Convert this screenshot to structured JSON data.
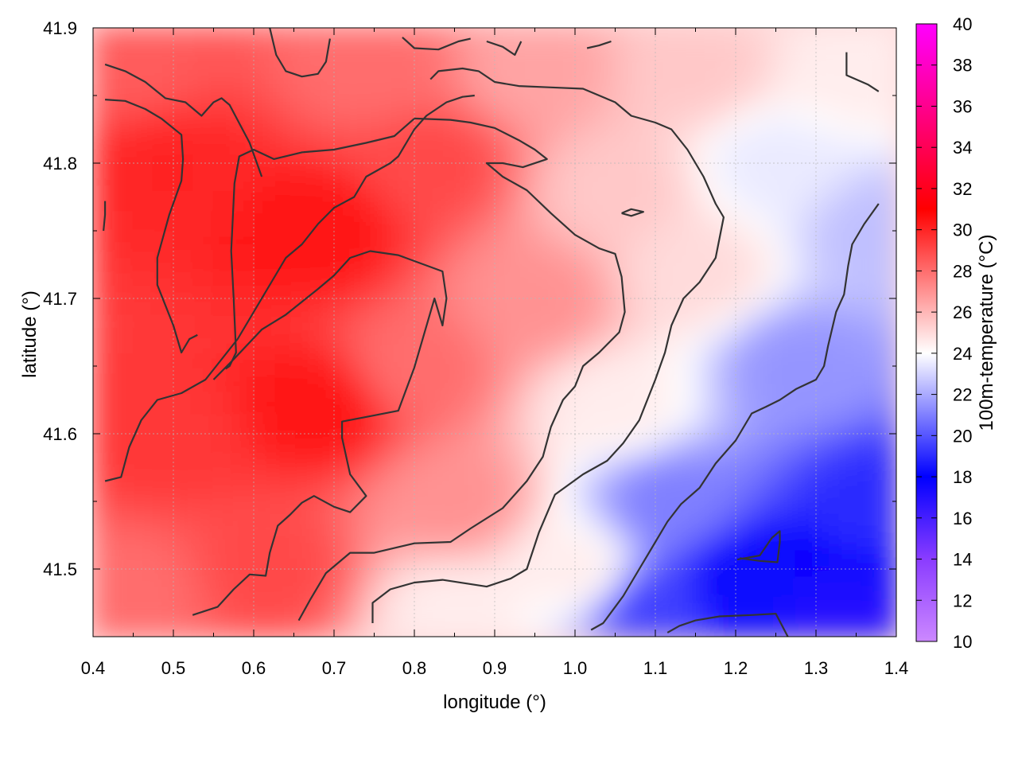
{
  "chart_data": {
    "type": "heatmap",
    "title": "",
    "xlabel": "longitude (°)",
    "ylabel": "latitude (°)",
    "colorbar_label": "100m-temperature (°C)",
    "xlim": [
      0.4,
      1.4
    ],
    "ylim": [
      41.45,
      41.9
    ],
    "x_ticks": [
      "0.4",
      "0.5",
      "0.6",
      "0.7",
      "0.8",
      "0.9",
      "1.0",
      "1.1",
      "1.2",
      "1.3",
      "1.4"
    ],
    "y_ticks": [
      "41.5",
      "41.6",
      "41.7",
      "41.8",
      "41.9"
    ],
    "colorbar_range": [
      10,
      40
    ],
    "colorbar_ticks": [
      "10",
      "12",
      "14",
      "16",
      "18",
      "20",
      "22",
      "24",
      "26",
      "28",
      "30",
      "32",
      "34",
      "36",
      "38",
      "40"
    ],
    "grid": true,
    "colormap": [
      {
        "value": 10,
        "color": "#cc88ff"
      },
      {
        "value": 14,
        "color": "#8a3cff"
      },
      {
        "value": 18,
        "color": "#0000ff"
      },
      {
        "value": 24,
        "color": "#ffffff"
      },
      {
        "value": 31,
        "color": "#ff0000"
      },
      {
        "value": 40,
        "color": "#ff00ff"
      }
    ],
    "temperature_samples": [
      {
        "lon": 0.45,
        "lat": 41.87,
        "t": 28.5
      },
      {
        "lon": 0.5,
        "lat": 41.8,
        "t": 30.0
      },
      {
        "lon": 0.5,
        "lat": 41.6,
        "t": 29.5
      },
      {
        "lon": 0.45,
        "lat": 41.48,
        "t": 28.0
      },
      {
        "lon": 0.68,
        "lat": 41.75,
        "t": 30.5
      },
      {
        "lon": 0.68,
        "lat": 41.62,
        "t": 30.5
      },
      {
        "lon": 0.62,
        "lat": 41.5,
        "t": 29.0
      },
      {
        "lon": 0.82,
        "lat": 41.8,
        "t": 29.0
      },
      {
        "lon": 0.8,
        "lat": 41.65,
        "t": 28.0
      },
      {
        "lon": 0.75,
        "lat": 41.87,
        "t": 28.0
      },
      {
        "lon": 0.85,
        "lat": 41.55,
        "t": 27.0
      },
      {
        "lon": 0.85,
        "lat": 41.47,
        "t": 24.5
      },
      {
        "lon": 0.95,
        "lat": 41.7,
        "t": 27.0
      },
      {
        "lon": 0.95,
        "lat": 41.87,
        "t": 26.5
      },
      {
        "lon": 1.05,
        "lat": 41.78,
        "t": 25.5
      },
      {
        "lon": 1.05,
        "lat": 41.62,
        "t": 24.5
      },
      {
        "lon": 1.0,
        "lat": 41.5,
        "t": 24.5
      },
      {
        "lon": 1.15,
        "lat": 41.87,
        "t": 25.5
      },
      {
        "lon": 1.15,
        "lat": 41.72,
        "t": 25.0
      },
      {
        "lon": 1.12,
        "lat": 41.55,
        "t": 21.0
      },
      {
        "lon": 1.1,
        "lat": 41.47,
        "t": 19.5
      },
      {
        "lon": 1.25,
        "lat": 41.8,
        "t": 23.5
      },
      {
        "lon": 1.28,
        "lat": 41.65,
        "t": 21.5
      },
      {
        "lon": 1.22,
        "lat": 41.49,
        "t": 17.5
      },
      {
        "lon": 1.35,
        "lat": 41.87,
        "t": 24.5
      },
      {
        "lon": 1.38,
        "lat": 41.75,
        "t": 22.5
      },
      {
        "lon": 1.38,
        "lat": 41.55,
        "t": 19.0
      },
      {
        "lon": 1.33,
        "lat": 41.46,
        "t": 17.0
      }
    ],
    "contours": [
      [
        [
          0.415,
          41.873
        ],
        [
          0.44,
          41.868
        ],
        [
          0.465,
          41.86
        ],
        [
          0.49,
          41.848
        ],
        [
          0.515,
          41.845
        ],
        [
          0.535,
          41.835
        ],
        [
          0.55,
          41.845
        ],
        [
          0.56,
          41.848
        ],
        [
          0.57,
          41.843
        ],
        [
          0.595,
          41.815
        ],
        [
          0.61,
          41.79
        ]
      ],
      [
        [
          0.415,
          41.847
        ],
        [
          0.44,
          41.846
        ],
        [
          0.465,
          41.84
        ],
        [
          0.485,
          41.833
        ],
        [
          0.51,
          41.821
        ],
        [
          0.512,
          41.803
        ],
        [
          0.51,
          41.787
        ],
        [
          0.495,
          41.762
        ],
        [
          0.48,
          41.73
        ],
        [
          0.48,
          41.71
        ],
        [
          0.5,
          41.68
        ],
        [
          0.51,
          41.66
        ],
        [
          0.52,
          41.67
        ],
        [
          0.53,
          41.673
        ]
      ],
      [
        [
          0.415,
          41.772
        ],
        [
          0.415,
          41.762
        ],
        [
          0.413,
          41.75
        ]
      ],
      [
        [
          0.415,
          41.565
        ],
        [
          0.435,
          41.568
        ],
        [
          0.445,
          41.59
        ],
        [
          0.46,
          41.61
        ],
        [
          0.48,
          41.625
        ],
        [
          0.51,
          41.63
        ],
        [
          0.54,
          41.64
        ],
        [
          0.56,
          41.655
        ],
        [
          0.58,
          41.67
        ],
        [
          0.6,
          41.69
        ],
        [
          0.62,
          41.71
        ],
        [
          0.64,
          41.73
        ],
        [
          0.66,
          41.74
        ],
        [
          0.68,
          41.755
        ],
        [
          0.7,
          41.767
        ],
        [
          0.725,
          41.775
        ],
        [
          0.74,
          41.79
        ],
        [
          0.77,
          41.8
        ],
        [
          0.78,
          41.805
        ],
        [
          0.79,
          41.815
        ],
        [
          0.8,
          41.825
        ],
        [
          0.815,
          41.835
        ],
        [
          0.84,
          41.845
        ],
        [
          0.86,
          41.849
        ],
        [
          0.875,
          41.85
        ]
      ],
      [
        [
          0.565,
          41.648
        ],
        [
          0.57,
          41.65
        ],
        [
          0.578,
          41.66
        ],
        [
          0.575,
          41.7
        ],
        [
          0.572,
          41.735
        ],
        [
          0.576,
          41.785
        ],
        [
          0.582,
          41.805
        ],
        [
          0.6,
          41.81
        ],
        [
          0.625,
          41.803
        ],
        [
          0.66,
          41.808
        ],
        [
          0.7,
          41.81
        ],
        [
          0.74,
          41.815
        ],
        [
          0.775,
          41.82
        ],
        [
          0.8,
          41.833
        ]
      ],
      [
        [
          0.524,
          41.466
        ],
        [
          0.555,
          41.472
        ],
        [
          0.575,
          41.485
        ],
        [
          0.595,
          41.496
        ],
        [
          0.615,
          41.495
        ],
        [
          0.62,
          41.512
        ],
        [
          0.63,
          41.532
        ],
        [
          0.645,
          41.54
        ],
        [
          0.66,
          41.549
        ],
        [
          0.675,
          41.554
        ],
        [
          0.7,
          41.546
        ],
        [
          0.72,
          41.542
        ],
        [
          0.74,
          41.554
        ],
        [
          0.72,
          41.57
        ],
        [
          0.71,
          41.597
        ],
        [
          0.71,
          41.609
        ],
        [
          0.745,
          41.613
        ],
        [
          0.78,
          41.617
        ],
        [
          0.8,
          41.649
        ],
        [
          0.825,
          41.7
        ],
        [
          0.835,
          41.68
        ],
        [
          0.84,
          41.7
        ],
        [
          0.835,
          41.72
        ],
        [
          0.78,
          41.732
        ],
        [
          0.745,
          41.735
        ],
        [
          0.72,
          41.73
        ],
        [
          0.7,
          41.717
        ],
        [
          0.68,
          41.707
        ],
        [
          0.64,
          41.688
        ],
        [
          0.61,
          41.677
        ],
        [
          0.575,
          41.655
        ],
        [
          0.55,
          41.64
        ]
      ],
      [
        [
          0.656,
          41.462
        ],
        [
          0.67,
          41.477
        ],
        [
          0.69,
          41.497
        ],
        [
          0.72,
          41.512
        ],
        [
          0.75,
          41.512
        ],
        [
          0.8,
          41.519
        ],
        [
          0.845,
          41.52
        ],
        [
          0.87,
          41.53
        ],
        [
          0.91,
          41.545
        ],
        [
          0.94,
          41.565
        ],
        [
          0.96,
          41.583
        ],
        [
          0.97,
          41.605
        ],
        [
          0.985,
          41.625
        ],
        [
          1.0,
          41.635
        ],
        [
          1.01,
          41.65
        ],
        [
          1.03,
          41.66
        ],
        [
          1.055,
          41.675
        ],
        [
          1.062,
          41.69
        ],
        [
          1.058,
          41.716
        ],
        [
          1.05,
          41.733
        ],
        [
          1.03,
          41.737
        ],
        [
          1.0,
          41.747
        ],
        [
          0.97,
          41.763
        ],
        [
          0.94,
          41.78
        ],
        [
          0.91,
          41.79
        ],
        [
          0.89,
          41.8
        ],
        [
          0.91,
          41.8
        ],
        [
          0.935,
          41.797
        ],
        [
          0.965,
          41.803
        ],
        [
          0.95,
          41.81
        ],
        [
          0.93,
          41.817
        ],
        [
          0.9,
          41.826
        ],
        [
          0.87,
          41.83
        ],
        [
          0.845,
          41.832
        ],
        [
          0.8,
          41.833
        ]
      ],
      [
        [
          0.748,
          41.46
        ],
        [
          0.748,
          41.475
        ],
        [
          0.77,
          41.485
        ],
        [
          0.8,
          41.49
        ],
        [
          0.835,
          41.492
        ],
        [
          0.89,
          41.487
        ],
        [
          0.92,
          41.493
        ],
        [
          0.94,
          41.5
        ],
        [
          0.955,
          41.527
        ],
        [
          0.975,
          41.555
        ],
        [
          1.01,
          41.57
        ],
        [
          1.04,
          41.58
        ],
        [
          1.06,
          41.593
        ],
        [
          1.08,
          41.61
        ],
        [
          1.1,
          41.64
        ],
        [
          1.112,
          41.66
        ],
        [
          1.12,
          41.68
        ],
        [
          1.135,
          41.7
        ],
        [
          1.155,
          41.712
        ],
        [
          1.175,
          41.73
        ],
        [
          1.185,
          41.76
        ],
        [
          1.175,
          41.77
        ],
        [
          1.16,
          41.79
        ],
        [
          1.14,
          41.81
        ],
        [
          1.12,
          41.825
        ],
        [
          1.1,
          41.83
        ],
        [
          1.07,
          41.835
        ],
        [
          1.05,
          41.845
        ],
        [
          1.01,
          41.855
        ],
        [
          0.97,
          41.856
        ],
        [
          0.93,
          41.857
        ],
        [
          0.9,
          41.86
        ],
        [
          0.88,
          41.868
        ],
        [
          0.86,
          41.87
        ],
        [
          0.83,
          41.868
        ],
        [
          0.82,
          41.862
        ]
      ],
      [
        [
          1.02,
          41.455
        ],
        [
          1.035,
          41.46
        ],
        [
          1.06,
          41.48
        ],
        [
          1.08,
          41.5
        ],
        [
          1.095,
          41.515
        ],
        [
          1.115,
          41.535
        ],
        [
          1.132,
          41.548
        ],
        [
          1.155,
          41.56
        ],
        [
          1.175,
          41.578
        ],
        [
          1.2,
          41.595
        ],
        [
          1.22,
          41.615
        ],
        [
          1.238,
          41.62
        ],
        [
          1.255,
          41.625
        ],
        [
          1.275,
          41.633
        ],
        [
          1.3,
          41.64
        ],
        [
          1.31,
          41.65
        ],
        [
          1.315,
          41.665
        ],
        [
          1.325,
          41.69
        ],
        [
          1.335,
          41.703
        ],
        [
          1.34,
          41.724
        ],
        [
          1.345,
          41.74
        ],
        [
          1.36,
          41.755
        ],
        [
          1.378,
          41.77
        ]
      ],
      [
        [
          1.115,
          41.453
        ],
        [
          1.13,
          41.458
        ],
        [
          1.15,
          41.462
        ],
        [
          1.18,
          41.465
        ],
        [
          1.22,
          41.466
        ],
        [
          1.25,
          41.467
        ],
        [
          1.265,
          41.45
        ]
      ],
      [
        [
          1.202,
          41.507
        ],
        [
          1.23,
          41.51
        ],
        [
          1.245,
          41.523
        ],
        [
          1.255,
          41.528
        ],
        [
          1.255,
          41.52
        ],
        [
          1.252,
          41.505
        ],
        [
          1.23,
          41.506
        ],
        [
          1.205,
          41.508
        ]
      ],
      [
        [
          1.058,
          41.763
        ],
        [
          1.07,
          41.766
        ],
        [
          1.085,
          41.764
        ],
        [
          1.07,
          41.761
        ],
        [
          1.058,
          41.763
        ]
      ],
      [
        [
          0.62,
          41.9
        ],
        [
          0.628,
          41.88
        ],
        [
          0.64,
          41.868
        ],
        [
          0.66,
          41.864
        ],
        [
          0.68,
          41.866
        ],
        [
          0.69,
          41.875
        ],
        [
          0.695,
          41.892
        ]
      ],
      [
        [
          0.785,
          41.893
        ],
        [
          0.8,
          41.885
        ],
        [
          0.83,
          41.884
        ],
        [
          0.855,
          41.89
        ],
        [
          0.87,
          41.892
        ]
      ],
      [
        [
          0.89,
          41.89
        ],
        [
          0.91,
          41.886
        ],
        [
          0.925,
          41.88
        ],
        [
          0.933,
          41.89
        ]
      ],
      [
        [
          1.015,
          41.885
        ],
        [
          1.03,
          41.887
        ],
        [
          1.045,
          41.89
        ]
      ],
      [
        [
          1.338,
          41.882
        ],
        [
          1.338,
          41.865
        ],
        [
          1.365,
          41.858
        ],
        [
          1.378,
          41.853
        ]
      ]
    ]
  }
}
